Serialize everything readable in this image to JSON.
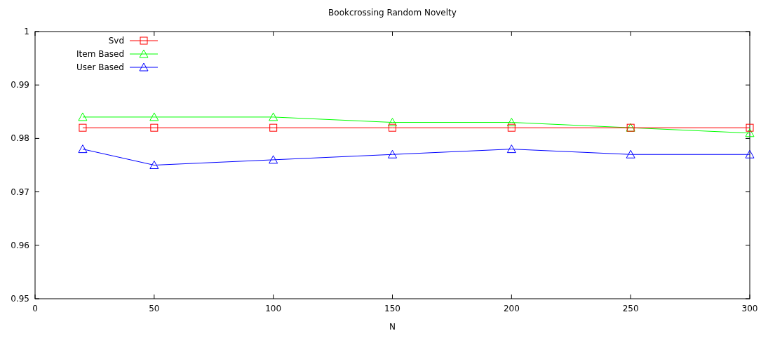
{
  "chart_data": {
    "type": "line",
    "title": "Bookcrossing Random Novelty",
    "xlabel": "N",
    "x": [
      20,
      50,
      100,
      150,
      200,
      250,
      300
    ],
    "xlim": [
      0,
      300
    ],
    "xticks": [
      0,
      50,
      100,
      150,
      200,
      250,
      300
    ],
    "ylim": [
      0.95,
      1
    ],
    "yticks": [
      {
        "value": 0.95,
        "label": "0.95"
      },
      {
        "value": 0.96,
        "label": "0.96"
      },
      {
        "value": 0.97,
        "label": "0.97"
      },
      {
        "value": 0.98,
        "label": "0.98"
      },
      {
        "value": 0.99,
        "label": "0.99"
      },
      {
        "value": 1,
        "label": "1"
      }
    ],
    "legend": "top left",
    "grid": false,
    "series": [
      {
        "name": "Svd",
        "color": "#ff0000",
        "marker": "square",
        "values": [
          0.982,
          0.982,
          0.982,
          0.982,
          0.982,
          0.982,
          0.982
        ]
      },
      {
        "name": "Item Based",
        "color": "#00ff00",
        "marker": "triangle",
        "values": [
          0.984,
          0.984,
          0.984,
          0.983,
          0.983,
          0.982,
          0.981
        ]
      },
      {
        "name": "User Based",
        "color": "#0000ff",
        "marker": "triangle",
        "values": [
          0.978,
          0.975,
          0.976,
          0.977,
          0.978,
          0.977,
          0.977
        ]
      }
    ]
  }
}
